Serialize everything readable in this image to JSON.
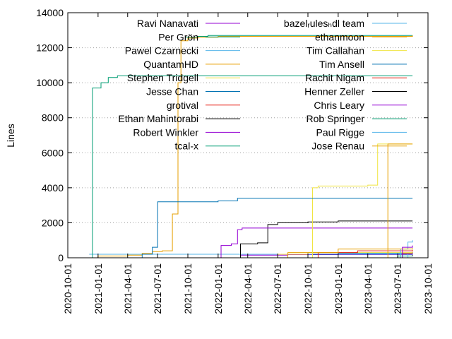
{
  "chart_data": {
    "type": "line",
    "title": "",
    "xlabel": "",
    "ylabel": "Lines",
    "ylim": [
      0,
      14000
    ],
    "xlim": [
      "2020-10-01",
      "2023-10-01"
    ],
    "x_ticks": [
      "2020-10-01",
      "2021-01-01",
      "2021-04-01",
      "2021-07-01",
      "2021-10-01",
      "2022-01-01",
      "2022-04-01",
      "2022-07-01",
      "2022-10-01",
      "2023-01-01",
      "2023-04-01",
      "2023-07-01",
      "2023-10-01"
    ],
    "y_ticks": [
      0,
      2000,
      4000,
      6000,
      8000,
      10000,
      12000,
      14000
    ],
    "grid": "dotted horizontal",
    "legend_position": "top (two columns)",
    "series": [
      {
        "name": "Ravi Nanavati",
        "color": "#9400d3",
        "points": [
          [
            "2022-03-05",
            0
          ],
          [
            "2022-03-10",
            150
          ],
          [
            "2022-08-01",
            180
          ],
          [
            "2023-08-15",
            200
          ]
        ]
      },
      {
        "name": "Per Grön",
        "color": "#009e73",
        "points": [
          [
            "2021-09-25",
            12600
          ],
          [
            "2021-11-01",
            12650
          ],
          [
            "2021-12-01",
            12700
          ],
          [
            "2023-08-15",
            12700
          ]
        ]
      },
      {
        "name": "Pawel Czarnecki",
        "color": "#56b4e9",
        "points": [
          [
            "2020-12-05",
            200
          ],
          [
            "2021-06-01",
            200
          ],
          [
            "2022-10-01",
            200
          ],
          [
            "2023-08-15",
            200
          ]
        ]
      },
      {
        "name": "QuantamHD",
        "color": "#e69f00",
        "points": [
          [
            "2020-12-01",
            0
          ],
          [
            "2021-01-01",
            100
          ],
          [
            "2021-04-01",
            150
          ],
          [
            "2021-05-15",
            250
          ],
          [
            "2021-06-15",
            350
          ],
          [
            "2021-07-15",
            400
          ],
          [
            "2021-08-15",
            2500
          ],
          [
            "2021-09-01",
            10000
          ],
          [
            "2021-09-10",
            12400
          ],
          [
            "2021-10-01",
            12550
          ],
          [
            "2021-11-01",
            12600
          ],
          [
            "2022-01-01",
            12650
          ],
          [
            "2023-08-15",
            12700
          ]
        ]
      },
      {
        "name": "Stephen Tridgell",
        "color": "#f0e442",
        "points": [
          [
            "2022-05-01",
            0
          ],
          [
            "2022-07-01",
            200
          ],
          [
            "2022-10-01",
            300
          ],
          [
            "2023-08-15",
            350
          ]
        ]
      },
      {
        "name": "Jesse Chan",
        "color": "#0072b2",
        "points": [
          [
            "2022-09-01",
            0
          ],
          [
            "2022-10-15",
            200
          ],
          [
            "2023-01-01",
            250
          ],
          [
            "2023-08-15",
            300
          ]
        ]
      },
      {
        "name": "grotival",
        "color": "#e51e10",
        "points": [
          [
            "2022-10-01",
            0
          ],
          [
            "2022-11-01",
            300
          ],
          [
            "2023-03-01",
            400
          ],
          [
            "2023-08-15",
            450
          ]
        ]
      },
      {
        "name": "Ethan Mahintorabi",
        "color": "#000000",
        "points": [
          [
            "2022-03-01",
            0
          ],
          [
            "2022-03-10",
            800
          ],
          [
            "2022-05-01",
            850
          ],
          [
            "2022-06-01",
            1900
          ],
          [
            "2022-07-01",
            2000
          ],
          [
            "2022-10-01",
            2050
          ],
          [
            "2023-01-01",
            2100
          ],
          [
            "2023-08-15",
            2100
          ]
        ]
      },
      {
        "name": "Robert Winkler",
        "color": "#9400d3",
        "points": [
          [
            "2022-01-01",
            0
          ],
          [
            "2022-01-10",
            700
          ],
          [
            "2022-02-10",
            800
          ],
          [
            "2022-03-01",
            1600
          ],
          [
            "2022-03-15",
            1700
          ],
          [
            "2023-08-15",
            1700
          ]
        ]
      },
      {
        "name": "tcal-x",
        "color": "#009e73",
        "points": [
          [
            "2020-12-01",
            0
          ],
          [
            "2020-12-15",
            9700
          ],
          [
            "2021-01-10",
            10000
          ],
          [
            "2021-02-01",
            10300
          ],
          [
            "2021-03-01",
            10400
          ],
          [
            "2023-08-15",
            10400
          ]
        ]
      },
      {
        "name": "bazel_rules_hdl team",
        "color": "#56b4e9",
        "points": [
          [
            "2023-07-01",
            0
          ],
          [
            "2023-07-10",
            500
          ],
          [
            "2023-08-01",
            900
          ],
          [
            "2023-08-15",
            1000
          ]
        ]
      },
      {
        "name": "ethanmoon",
        "color": "#e69f00",
        "points": [
          [
            "2022-07-01",
            0
          ],
          [
            "2022-08-01",
            300
          ],
          [
            "2023-01-01",
            500
          ],
          [
            "2023-08-15",
            550
          ]
        ]
      },
      {
        "name": "Tim Callahan",
        "color": "#f0e442",
        "points": [
          [
            "2022-10-01",
            0
          ],
          [
            "2022-10-15",
            4000
          ],
          [
            "2022-11-01",
            4100
          ],
          [
            "2023-04-01",
            4150
          ],
          [
            "2023-05-01",
            6500
          ],
          [
            "2023-08-15",
            6500
          ]
        ]
      },
      {
        "name": "Tim Ansell",
        "color": "#0072b2",
        "points": [
          [
            "2020-12-01",
            0
          ],
          [
            "2021-05-15",
            200
          ],
          [
            "2021-06-15",
            600
          ],
          [
            "2021-07-01",
            3200
          ],
          [
            "2022-01-01",
            3250
          ],
          [
            "2022-03-01",
            3400
          ],
          [
            "2023-08-15",
            3400
          ]
        ]
      },
      {
        "name": "Rachit Nigam",
        "color": "#e51e10",
        "points": [
          [
            "2023-07-01",
            0
          ],
          [
            "2023-07-15",
            250
          ],
          [
            "2023-08-15",
            300
          ]
        ]
      },
      {
        "name": "Henner Zeller",
        "color": "#000000",
        "points": [
          [
            "2023-06-01",
            0
          ],
          [
            "2023-07-01",
            100
          ],
          [
            "2023-08-15",
            150
          ]
        ]
      },
      {
        "name": "Chris Leary",
        "color": "#9400d3",
        "points": [
          [
            "2023-06-15",
            0
          ],
          [
            "2023-07-15",
            600
          ],
          [
            "2023-08-15",
            700
          ]
        ]
      },
      {
        "name": "Rob Springer",
        "color": "#009e73",
        "points": [
          [
            "2023-06-01",
            0
          ],
          [
            "2023-07-01",
            100
          ],
          [
            "2023-08-15",
            100
          ]
        ]
      },
      {
        "name": "Paul Rigge",
        "color": "#56b4e9",
        "points": [
          [
            "2023-07-01",
            0
          ],
          [
            "2023-08-01",
            200
          ],
          [
            "2023-08-15",
            250
          ]
        ]
      },
      {
        "name": "Jose Renau",
        "color": "#e69f00",
        "points": [
          [
            "2023-05-01",
            0
          ],
          [
            "2023-06-01",
            6500
          ],
          [
            "2023-08-15",
            6500
          ]
        ]
      }
    ]
  }
}
